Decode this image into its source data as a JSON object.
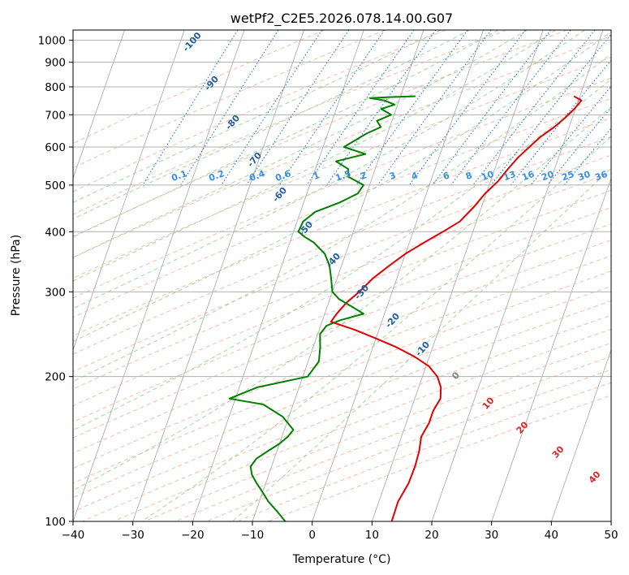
{
  "chart_data": {
    "type": "line",
    "title": "wetPf2_C2E5.2026.078.14.00.G07",
    "xlabel": "Temperature (°C)",
    "ylabel": "Pressure (hPa)",
    "xlim": [
      -40,
      50
    ],
    "ylim": [
      1050,
      100
    ],
    "y_scale": "log",
    "grid": true,
    "x_ticks": [
      "−40",
      "−30",
      "−20",
      "−10",
      "0",
      "10",
      "20",
      "30",
      "40",
      "50"
    ],
    "y_ticks": [
      "100",
      "200",
      "300",
      "400",
      "500",
      "600",
      "700",
      "800",
      "900",
      "1000"
    ],
    "series": [
      {
        "color": "#e00000",
        "pressure": [
          765,
          750,
          720,
          690,
          660,
          630,
          600,
          570,
          540,
          510,
          480,
          450,
          420,
          400,
          380,
          360,
          340,
          320,
          300,
          285,
          270,
          260,
          250,
          240,
          230,
          220,
          210,
          200,
          190,
          180,
          170,
          160,
          150,
          140,
          130,
          120,
          110,
          100
        ],
        "temperature": [
          19.0,
          20.5,
          19.8,
          18.8,
          17.5,
          15.8,
          14.5,
          13.2,
          12.2,
          11.3,
          9.8,
          8.7,
          7.2,
          5.0,
          2.5,
          0.0,
          -2.0,
          -4.0,
          -5.5,
          -7.0,
          -8.0,
          -8.5,
          -4.0,
          0.0,
          4.0,
          7.5,
          10.5,
          12.5,
          13.7,
          14.3,
          13.8,
          13.8,
          13.3,
          13.8,
          14.0,
          13.9,
          13.2,
          13.3
        ]
      },
      {
        "color": "#008000",
        "pressure": [
          765,
          762,
          758,
          750,
          735,
          720,
          700,
          680,
          660,
          640,
          620,
          600,
          580,
          560,
          540,
          520,
          500,
          480,
          460,
          440,
          420,
          400,
          390,
          380,
          360,
          340,
          320,
          300,
          290,
          280,
          270,
          262,
          255,
          245,
          230,
          215,
          200,
          190,
          180,
          175,
          165,
          155,
          150,
          145,
          140,
          135,
          130,
          125,
          120,
          115,
          110,
          105,
          100
        ],
        "temperature": [
          -7.5,
          -11.5,
          -15.0,
          -12.5,
          -10.5,
          -12.5,
          -10.5,
          -12.5,
          -11.5,
          -13.5,
          -15.0,
          -16.5,
          -12.5,
          -17.0,
          -14.5,
          -14.0,
          -11.0,
          -11.5,
          -14.0,
          -17.5,
          -19.0,
          -19.2,
          -17.8,
          -16.0,
          -13.5,
          -12.0,
          -11.0,
          -10.0,
          -8.5,
          -6.0,
          -3.5,
          -7.0,
          -9.0,
          -9.6,
          -8.8,
          -8.2,
          -9.2,
          -17.0,
          -21.0,
          -15.0,
          -11.0,
          -8.5,
          -9.0,
          -10.0,
          -11.5,
          -13.0,
          -13.5,
          -12.8,
          -11.5,
          -10.0,
          -8.5,
          -6.5,
          -4.5
        ]
      }
    ],
    "dry_adiabat_labels": [
      "-100",
      "-90",
      "-80",
      "-70",
      "-60",
      "-50",
      "-40",
      "-30",
      "-20",
      "-10",
      "0",
      "10",
      "20",
      "30",
      "40"
    ],
    "mixing_ratio_labels": [
      "0.1",
      "0.2",
      "0.4",
      "0.6",
      "1",
      "1.5",
      "2",
      "3",
      "4",
      "6",
      "8",
      "10",
      "13",
      "16",
      "20",
      "25",
      "30",
      "36"
    ],
    "colors": {
      "temperature": "#e00000",
      "dewpoint": "#008000",
      "dry_adiabat": "#f4a58a",
      "moist_adiabat": "#8fcf8f",
      "mixing_ratio": "#1f77d4",
      "isotherm": "#888888",
      "iso_label_cold": "#1f5f9f",
      "iso_label_warm": "#d62728"
    }
  }
}
